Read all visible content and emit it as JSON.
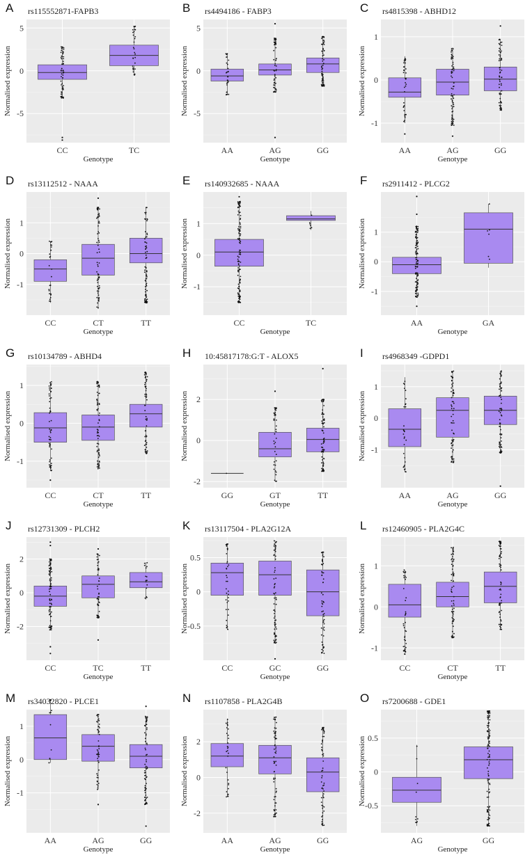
{
  "chart_data": [
    {
      "letter": "A",
      "type": "box",
      "title": "rs115552871-FAPB3",
      "xlabel": "Genotype",
      "ylabel": "Normalised expression",
      "yticks": [
        5,
        0,
        -5
      ],
      "ylim": [
        -8.4,
        6
      ],
      "categories": [
        "CC",
        "TC"
      ],
      "boxes": [
        {
          "q1": -1.0,
          "median": -0.2,
          "q3": 0.7,
          "min": -3.2,
          "max": 2.8,
          "n": 60,
          "outliers": [
            -7.8,
            -8.1
          ]
        },
        {
          "q1": 0.6,
          "median": 1.8,
          "q3": 3.0,
          "min": -0.5,
          "max": 5.2,
          "n": 30,
          "outliers": []
        }
      ]
    },
    {
      "letter": "B",
      "type": "box",
      "title": "rs4494186 - FABP3",
      "xlabel": "Genotype",
      "ylabel": "Normalised expression",
      "yticks": [
        5,
        0,
        -5
      ],
      "ylim": [
        -8.4,
        6
      ],
      "categories": [
        "AA",
        "AG",
        "GG"
      ],
      "boxes": [
        {
          "q1": -1.2,
          "median": -0.6,
          "q3": 0.2,
          "min": -2.8,
          "max": 2.0,
          "n": 30,
          "outliers": []
        },
        {
          "q1": -0.5,
          "median": 0.1,
          "q3": 0.8,
          "min": -2.5,
          "max": 3.8,
          "n": 60,
          "outliers": [
            5.5,
            -7.8
          ]
        },
        {
          "q1": -0.2,
          "median": 0.8,
          "q3": 1.5,
          "min": -1.8,
          "max": 4.0,
          "n": 70,
          "outliers": []
        }
      ]
    },
    {
      "letter": "C",
      "type": "box",
      "title": "rs4815398 - ABHD12",
      "xlabel": "Genotype",
      "ylabel": "Normalised expression",
      "yticks": [
        1,
        0,
        -1
      ],
      "ylim": [
        -1.45,
        1.4
      ],
      "categories": [
        "AA",
        "AG",
        "GG"
      ],
      "boxes": [
        {
          "q1": -0.4,
          "median": -0.28,
          "q3": 0.05,
          "min": -1.0,
          "max": 0.55,
          "n": 35,
          "outliers": [
            -1.25
          ]
        },
        {
          "q1": -0.35,
          "median": -0.05,
          "q3": 0.25,
          "min": -1.05,
          "max": 0.75,
          "n": 70,
          "outliers": [
            -1.3
          ]
        },
        {
          "q1": -0.25,
          "median": 0.02,
          "q3": 0.3,
          "min": -0.7,
          "max": 0.95,
          "n": 65,
          "outliers": [
            1.25
          ]
        }
      ]
    },
    {
      "letter": "D",
      "type": "box",
      "title": "rs13112512 - NAAA",
      "xlabel": "Genotype",
      "ylabel": "Normalised expression",
      "yticks": [
        1,
        0,
        -1
      ],
      "ylim": [
        -2,
        2
      ],
      "categories": [
        "CC",
        "CT",
        "TT"
      ],
      "boxes": [
        {
          "q1": -0.9,
          "median": -0.5,
          "q3": -0.2,
          "min": -1.6,
          "max": 0.4,
          "n": 25,
          "outliers": []
        },
        {
          "q1": -0.7,
          "median": -0.15,
          "q3": 0.3,
          "min": -1.8,
          "max": 1.5,
          "n": 70,
          "outliers": [
            1.8
          ]
        },
        {
          "q1": -0.3,
          "median": 0.0,
          "q3": 0.5,
          "min": -1.6,
          "max": 1.5,
          "n": 80,
          "outliers": []
        }
      ]
    },
    {
      "letter": "E",
      "type": "box",
      "title": "rs140932685 - NAAA",
      "xlabel": "Genotype",
      "ylabel": "Normalised expression",
      "yticks": [
        1,
        0,
        -1
      ],
      "ylim": [
        -1.9,
        2
      ],
      "categories": [
        "CC",
        "TC"
      ],
      "boxes": [
        {
          "q1": -0.35,
          "median": 0.1,
          "q3": 0.5,
          "min": -1.5,
          "max": 1.7,
          "n": 120,
          "outliers": [
            1.85
          ]
        },
        {
          "q1": 1.1,
          "median": 1.15,
          "q3": 1.25,
          "min": 0.8,
          "max": 1.4,
          "n": 6,
          "outliers": []
        }
      ]
    },
    {
      "letter": "F",
      "type": "box",
      "title": "rs2911412 - PLCG2",
      "xlabel": "Genotype",
      "ylabel": "Normalised expression",
      "yticks": [
        1,
        0,
        -1
      ],
      "ylim": [
        -1.8,
        2.35
      ],
      "categories": [
        "AA",
        "GA"
      ],
      "boxes": [
        {
          "q1": -0.4,
          "median": -0.1,
          "q3": 0.15,
          "min": -1.2,
          "max": 1.2,
          "n": 110,
          "outliers": [
            2.2,
            -1.5,
            1.6
          ]
        },
        {
          "q1": -0.05,
          "median": 1.1,
          "q3": 1.65,
          "min": -0.2,
          "max": 1.95,
          "n": 6,
          "outliers": []
        }
      ]
    },
    {
      "letter": "G",
      "type": "box",
      "title": "rs10134789 - ABHD4",
      "xlabel": "Genotype",
      "ylabel": "Normalised expression",
      "yticks": [
        1,
        0,
        -1
      ],
      "ylim": [
        -1.7,
        1.55
      ],
      "categories": [
        "CC",
        "CT",
        "TT"
      ],
      "boxes": [
        {
          "q1": -0.5,
          "median": -0.12,
          "q3": 0.28,
          "min": -1.25,
          "max": 1.1,
          "n": 55,
          "outliers": [
            -1.5
          ]
        },
        {
          "q1": -0.45,
          "median": -0.1,
          "q3": 0.22,
          "min": -1.2,
          "max": 1.1,
          "n": 70,
          "outliers": []
        },
        {
          "q1": -0.1,
          "median": 0.25,
          "q3": 0.5,
          "min": -0.8,
          "max": 1.35,
          "n": 60,
          "outliers": []
        }
      ]
    },
    {
      "letter": "H",
      "type": "box",
      "title": "10:45817178:G:T - ALOX5",
      "xlabel": "Genotype",
      "ylabel": "Normalised expression",
      "yticks": [
        2,
        0,
        -2
      ],
      "ylim": [
        -2.3,
        3.7
      ],
      "categories": [
        "GG",
        "GT",
        "TT"
      ],
      "boxes": [
        {
          "q1": -1.6,
          "median": -1.6,
          "q3": -1.6,
          "min": -1.6,
          "max": -1.6,
          "n": 1,
          "outliers": []
        },
        {
          "q1": -0.8,
          "median": -0.4,
          "q3": 0.4,
          "min": -2.0,
          "max": 1.6,
          "n": 40,
          "outliers": [
            2.4
          ]
        },
        {
          "q1": -0.55,
          "median": 0.05,
          "q3": 0.6,
          "min": -1.5,
          "max": 2.0,
          "n": 90,
          "outliers": [
            3.5
          ]
        }
      ]
    },
    {
      "letter": "I",
      "type": "box",
      "title": "rs4968349 -GDPD1",
      "xlabel": "Genotype",
      "ylabel": "Normalised expression",
      "yticks": [
        1,
        0,
        -1
      ],
      "ylim": [
        -2.2,
        1.7
      ],
      "categories": [
        "AA",
        "AG",
        "GG"
      ],
      "boxes": [
        {
          "q1": -0.9,
          "median": -0.35,
          "q3": 0.3,
          "min": -1.7,
          "max": 1.3,
          "n": 30,
          "outliers": []
        },
        {
          "q1": -0.6,
          "median": 0.25,
          "q3": 0.65,
          "min": -1.4,
          "max": 1.5,
          "n": 70,
          "outliers": []
        },
        {
          "q1": -0.2,
          "median": 0.25,
          "q3": 0.7,
          "min": -1.1,
          "max": 1.5,
          "n": 70,
          "outliers": [
            -2.15
          ]
        }
      ]
    },
    {
      "letter": "J",
      "type": "box",
      "title": "rs12731309 - PLCH2",
      "xlabel": "Genotype",
      "ylabel": "Normalised expression",
      "yticks": [
        2,
        0,
        -2
      ],
      "ylim": [
        -4,
        3.3
      ],
      "categories": [
        "CC",
        "TC",
        "TT"
      ],
      "boxes": [
        {
          "q1": -0.8,
          "median": -0.2,
          "q3": 0.4,
          "min": -2.2,
          "max": 2.0,
          "n": 80,
          "outliers": [
            -3.2,
            -3.6,
            2.8,
            3.0
          ]
        },
        {
          "q1": -0.3,
          "median": 0.5,
          "q3": 1.0,
          "min": -1.5,
          "max": 2.3,
          "n": 50,
          "outliers": [
            -2.8,
            2.6
          ]
        },
        {
          "q1": 0.3,
          "median": 0.65,
          "q3": 1.2,
          "min": -0.4,
          "max": 1.8,
          "n": 15,
          "outliers": []
        }
      ]
    },
    {
      "letter": "K",
      "type": "box",
      "title": "rs13117504 - PLA2G12A",
      "xlabel": "Genotype",
      "ylabel": "Normalised expression",
      "yticks": [
        0.5,
        0,
        -0.5
      ],
      "ylim": [
        -1,
        0.8
      ],
      "categories": [
        "CC",
        "GC",
        "GG"
      ],
      "boxes": [
        {
          "q1": -0.05,
          "median": 0.28,
          "q3": 0.42,
          "min": -0.55,
          "max": 0.7,
          "n": 40,
          "outliers": []
        },
        {
          "q1": -0.05,
          "median": 0.25,
          "q3": 0.45,
          "min": -0.75,
          "max": 0.75,
          "n": 70,
          "outliers": [
            -0.98
          ]
        },
        {
          "q1": -0.35,
          "median": 0.0,
          "q3": 0.32,
          "min": -0.9,
          "max": 0.58,
          "n": 60,
          "outliers": []
        }
      ]
    },
    {
      "letter": "L",
      "type": "box",
      "title": "rs12460905 - PLA2G4C",
      "xlabel": "Genotype",
      "ylabel": "Normalised expression",
      "yticks": [
        1,
        0,
        -1
      ],
      "ylim": [
        -1.3,
        1.7
      ],
      "categories": [
        "CC",
        "CT",
        "TT"
      ],
      "boxes": [
        {
          "q1": -0.25,
          "median": 0.05,
          "q3": 0.55,
          "min": -1.1,
          "max": 0.9,
          "n": 40,
          "outliers": [
            -1.15
          ]
        },
        {
          "q1": 0.0,
          "median": 0.25,
          "q3": 0.6,
          "min": -0.75,
          "max": 1.45,
          "n": 70,
          "outliers": []
        },
        {
          "q1": 0.1,
          "median": 0.5,
          "q3": 0.85,
          "min": -0.55,
          "max": 1.6,
          "n": 70,
          "outliers": []
        }
      ]
    },
    {
      "letter": "M",
      "type": "box",
      "title": "rs34032820 - PLCE1",
      "xlabel": "Genotype",
      "ylabel": "Normalised expression",
      "yticks": [
        1,
        0,
        -1
      ],
      "ylim": [
        -2.2,
        1.5
      ],
      "categories": [
        "AA",
        "AG",
        "GG"
      ],
      "boxes": [
        {
          "q1": 0.0,
          "median": 0.65,
          "q3": 1.35,
          "min": -0.1,
          "max": 1.8,
          "n": 12,
          "outliers": []
        },
        {
          "q1": -0.05,
          "median": 0.4,
          "q3": 0.75,
          "min": -0.9,
          "max": 1.35,
          "n": 50,
          "outliers": [
            -1.35
          ]
        },
        {
          "q1": -0.25,
          "median": 0.1,
          "q3": 0.45,
          "min": -1.35,
          "max": 1.3,
          "n": 70,
          "outliers": [
            -2.0,
            1.6
          ]
        }
      ]
    },
    {
      "letter": "N",
      "type": "box",
      "title": "rs1107858 - PLA2G4B",
      "xlabel": "Genotype",
      "ylabel": "Normalised expression",
      "yticks": [
        2,
        0,
        -2
      ],
      "ylim": [
        -3.1,
        3.8
      ],
      "categories": [
        "AA",
        "AG",
        "GG"
      ],
      "boxes": [
        {
          "q1": 0.6,
          "median": 1.2,
          "q3": 1.9,
          "min": -1.1,
          "max": 3.3,
          "n": 30,
          "outliers": []
        },
        {
          "q1": 0.2,
          "median": 1.1,
          "q3": 1.8,
          "min": -2.2,
          "max": 3.4,
          "n": 70,
          "outliers": []
        },
        {
          "q1": -0.8,
          "median": 0.3,
          "q3": 1.1,
          "min": -2.7,
          "max": 2.8,
          "n": 60,
          "outliers": []
        }
      ]
    },
    {
      "letter": "O",
      "type": "box",
      "title": "rs7200688 - GDE1",
      "xlabel": "Genotype",
      "ylabel": "Normalised expression",
      "yticks": [
        0.5,
        0,
        -0.5
      ],
      "ylim": [
        -0.9,
        0.92
      ],
      "categories": [
        "AG",
        "GG"
      ],
      "boxes": [
        {
          "q1": -0.45,
          "median": -0.27,
          "q3": -0.08,
          "min": -0.8,
          "max": 0.4,
          "n": 10,
          "outliers": []
        },
        {
          "q1": -0.1,
          "median": 0.18,
          "q3": 0.37,
          "min": -0.8,
          "max": 0.9,
          "n": 120,
          "outliers": []
        }
      ]
    }
  ]
}
